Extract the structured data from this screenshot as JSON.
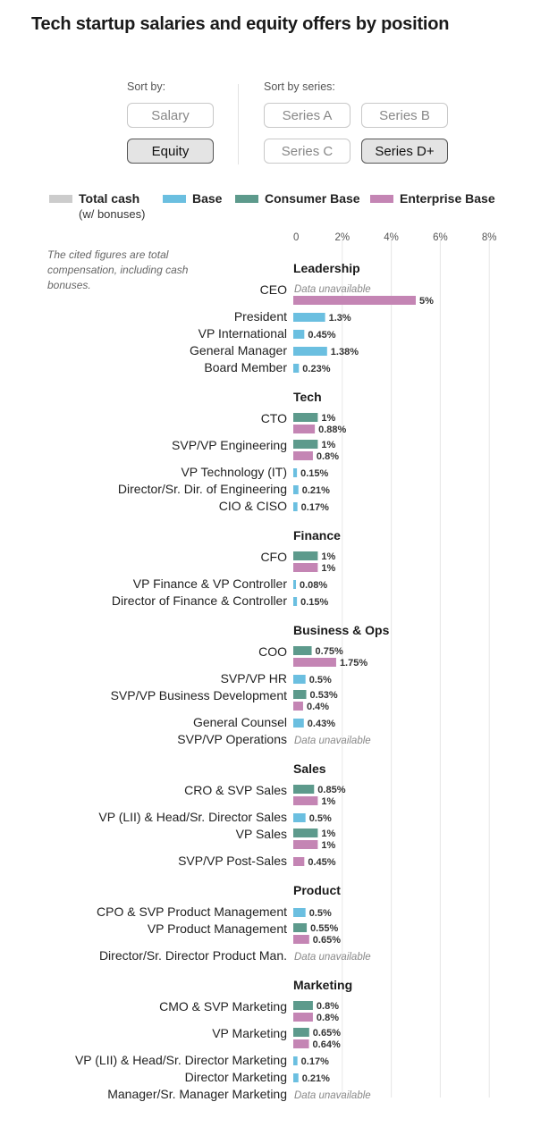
{
  "title": "Tech startup salaries and equity offers by position",
  "controls": {
    "sort_by_label": "Sort by:",
    "sort_by_options": [
      {
        "label": "Salary",
        "active": false
      },
      {
        "label": "Equity",
        "active": true
      }
    ],
    "sort_by_series_label": "Sort by series:",
    "series_options": [
      {
        "label": "Series A",
        "active": false
      },
      {
        "label": "Series B",
        "active": false
      },
      {
        "label": "Series C",
        "active": false
      },
      {
        "label": "Series D+",
        "active": true
      }
    ]
  },
  "legend": [
    {
      "label": "Total cash",
      "sublabel": "(w/ bonuses)",
      "color": "#cccccc"
    },
    {
      "label": "Base",
      "color": "#6bbfe0"
    },
    {
      "label": "Consumer Base",
      "color": "#5d9a8c"
    },
    {
      "label": "Enterprise Base",
      "color": "#c485b4"
    }
  ],
  "note": "The cited figures are total compensation, including cash bonuses.",
  "unavailable_text": "Data unavailable",
  "chart_data": {
    "type": "bar",
    "orientation": "horizontal",
    "x_ticks": [
      "0",
      "2%",
      "4%",
      "6%",
      "8%"
    ],
    "xlim": [
      0,
      8
    ],
    "grid": true,
    "legend_placement": "top",
    "series_colors": {
      "total_cash": "#cccccc",
      "base": "#6bbfe0",
      "consumer": "#5d9a8c",
      "enterprise": "#c485b4"
    },
    "groups": [
      {
        "name": "Leadership",
        "rows": [
          {
            "label": "CEO",
            "unavailable": true,
            "bars": [
              {
                "series": "enterprise",
                "value": 5,
                "label": "5%"
              }
            ]
          },
          {
            "label": "President",
            "bars": [
              {
                "series": "base",
                "value": 1.3,
                "label": "1.3%"
              }
            ]
          },
          {
            "label": "VP International",
            "bars": [
              {
                "series": "base",
                "value": 0.45,
                "label": "0.45%"
              }
            ]
          },
          {
            "label": "General Manager",
            "bars": [
              {
                "series": "base",
                "value": 1.38,
                "label": "1.38%"
              }
            ]
          },
          {
            "label": "Board Member",
            "bars": [
              {
                "series": "base",
                "value": 0.23,
                "label": "0.23%"
              }
            ]
          }
        ]
      },
      {
        "name": "Tech",
        "rows": [
          {
            "label": "CTO",
            "bars": [
              {
                "series": "consumer",
                "value": 1,
                "label": "1%"
              },
              {
                "series": "enterprise",
                "value": 0.88,
                "label": "0.88%"
              }
            ]
          },
          {
            "label": "SVP/VP Engineering",
            "bars": [
              {
                "series": "consumer",
                "value": 1,
                "label": "1%"
              },
              {
                "series": "enterprise",
                "value": 0.8,
                "label": "0.8%"
              }
            ]
          },
          {
            "label": "VP Technology (IT)",
            "bars": [
              {
                "series": "base",
                "value": 0.15,
                "label": "0.15%"
              }
            ]
          },
          {
            "label": "Director/Sr. Dir. of Engineering",
            "bars": [
              {
                "series": "base",
                "value": 0.21,
                "label": "0.21%"
              }
            ]
          },
          {
            "label": "CIO & CISO",
            "bars": [
              {
                "series": "base",
                "value": 0.17,
                "label": "0.17%"
              }
            ]
          }
        ]
      },
      {
        "name": "Finance",
        "rows": [
          {
            "label": "CFO",
            "bars": [
              {
                "series": "consumer",
                "value": 1,
                "label": "1%"
              },
              {
                "series": "enterprise",
                "value": 1,
                "label": "1%"
              }
            ]
          },
          {
            "label": "VP Finance & VP Controller",
            "bars": [
              {
                "series": "base",
                "value": 0.08,
                "label": "0.08%"
              }
            ]
          },
          {
            "label": "Director of Finance & Controller",
            "bars": [
              {
                "series": "base",
                "value": 0.15,
                "label": "0.15%"
              }
            ]
          }
        ]
      },
      {
        "name": "Business & Ops",
        "rows": [
          {
            "label": "COO",
            "bars": [
              {
                "series": "consumer",
                "value": 0.75,
                "label": "0.75%"
              },
              {
                "series": "enterprise",
                "value": 1.75,
                "label": "1.75%"
              }
            ]
          },
          {
            "label": "SVP/VP HR",
            "bars": [
              {
                "series": "base",
                "value": 0.5,
                "label": "0.5%"
              }
            ]
          },
          {
            "label": "SVP/VP Business Development",
            "bars": [
              {
                "series": "consumer",
                "value": 0.53,
                "label": "0.53%"
              },
              {
                "series": "enterprise",
                "value": 0.4,
                "label": "0.4%"
              }
            ]
          },
          {
            "label": "General Counsel",
            "bars": [
              {
                "series": "base",
                "value": 0.43,
                "label": "0.43%"
              }
            ]
          },
          {
            "label": "SVP/VP Operations",
            "unavailable": true,
            "bars": []
          }
        ]
      },
      {
        "name": "Sales",
        "rows": [
          {
            "label": "CRO & SVP Sales",
            "bars": [
              {
                "series": "consumer",
                "value": 0.85,
                "label": "0.85%"
              },
              {
                "series": "enterprise",
                "value": 1,
                "label": "1%"
              }
            ]
          },
          {
            "label": "VP (LII) & Head/Sr. Director Sales",
            "bars": [
              {
                "series": "base",
                "value": 0.5,
                "label": "0.5%"
              }
            ]
          },
          {
            "label": "VP Sales",
            "bars": [
              {
                "series": "consumer",
                "value": 1,
                "label": "1%"
              },
              {
                "series": "enterprise",
                "value": 1,
                "label": "1%"
              }
            ]
          },
          {
            "label": "SVP/VP Post-Sales",
            "bars": [
              {
                "series": "enterprise",
                "value": 0.45,
                "label": "0.45%"
              }
            ]
          }
        ]
      },
      {
        "name": "Product",
        "rows": [
          {
            "label": "CPO & SVP Product Management",
            "bars": [
              {
                "series": "base",
                "value": 0.5,
                "label": "0.5%"
              }
            ]
          },
          {
            "label": "VP Product Management",
            "bars": [
              {
                "series": "consumer",
                "value": 0.55,
                "label": "0.55%"
              },
              {
                "series": "enterprise",
                "value": 0.65,
                "label": "0.65%"
              }
            ]
          },
          {
            "label": "Director/Sr. Director Product Man.",
            "unavailable": true,
            "bars": []
          }
        ]
      },
      {
        "name": "Marketing",
        "rows": [
          {
            "label": "CMO & SVP Marketing",
            "bars": [
              {
                "series": "consumer",
                "value": 0.8,
                "label": "0.8%"
              },
              {
                "series": "enterprise",
                "value": 0.8,
                "label": "0.8%"
              }
            ]
          },
          {
            "label": "VP Marketing",
            "bars": [
              {
                "series": "consumer",
                "value": 0.65,
                "label": "0.65%"
              },
              {
                "series": "enterprise",
                "value": 0.64,
                "label": "0.64%"
              }
            ]
          },
          {
            "label": "VP (LII) & Head/Sr. Director Marketing",
            "bars": [
              {
                "series": "base",
                "value": 0.17,
                "label": "0.17%"
              }
            ]
          },
          {
            "label": "Director Marketing",
            "bars": [
              {
                "series": "base",
                "value": 0.21,
                "label": "0.21%"
              }
            ]
          },
          {
            "label": "Manager/Sr. Manager Marketing",
            "unavailable": true,
            "bars": []
          }
        ]
      }
    ]
  }
}
